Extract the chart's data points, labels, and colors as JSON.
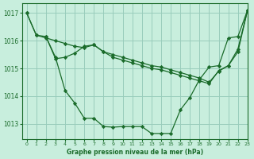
{
  "title": "Graphe pression niveau de la mer (hPa)",
  "background_color": "#c8eedd",
  "grid_color": "#99ccbb",
  "line_color": "#1a6b2a",
  "marker_color": "#1a6b2a",
  "xlim": [
    -0.5,
    23
  ],
  "ylim": [
    1012.45,
    1017.35
  ],
  "yticks": [
    1013,
    1014,
    1015,
    1016,
    1017
  ],
  "xticks": [
    0,
    1,
    2,
    3,
    4,
    5,
    6,
    7,
    8,
    9,
    10,
    11,
    12,
    13,
    14,
    15,
    16,
    17,
    18,
    19,
    20,
    21,
    22,
    23
  ],
  "series": [
    {
      "x": [
        0,
        1,
        2,
        3,
        4,
        5,
        6,
        7,
        8,
        9,
        10,
        11,
        12,
        13,
        14,
        15,
        16,
        17,
        18,
        19,
        20,
        21,
        22,
        23
      ],
      "y": [
        1017.0,
        1016.2,
        1016.15,
        1015.4,
        1014.2,
        1013.75,
        1013.2,
        1013.2,
        1012.9,
        1012.88,
        1012.9,
        1012.9,
        1012.9,
        1012.65,
        1012.65,
        1012.65,
        1013.5,
        1013.95,
        1014.6,
        1015.05,
        1015.1,
        1016.1,
        1016.15,
        1017.1
      ]
    },
    {
      "x": [
        0,
        1,
        2,
        3,
        4,
        5,
        6,
        7,
        8,
        9,
        10,
        11,
        12,
        13,
        14,
        15,
        16,
        17,
        18,
        19,
        20,
        21,
        22,
        23
      ],
      "y": [
        1017.0,
        1016.2,
        1016.1,
        1016.0,
        1015.9,
        1015.8,
        1015.75,
        1015.85,
        1015.6,
        1015.5,
        1015.4,
        1015.3,
        1015.2,
        1015.1,
        1015.05,
        1014.95,
        1014.85,
        1014.75,
        1014.65,
        1014.5,
        1014.9,
        1015.1,
        1015.6,
        1017.1
      ]
    },
    {
      "x": [
        2,
        3,
        4,
        5,
        6,
        7,
        8,
        9,
        10,
        11,
        12,
        13,
        14,
        15,
        16,
        17,
        18,
        19,
        20,
        21,
        22,
        23
      ],
      "y": [
        1016.15,
        1015.35,
        1015.4,
        1015.55,
        1015.8,
        1015.85,
        1015.6,
        1015.4,
        1015.3,
        1015.2,
        1015.1,
        1015.0,
        1014.95,
        1014.85,
        1014.75,
        1014.65,
        1014.55,
        1014.45,
        1014.92,
        1015.1,
        1015.7,
        1017.1
      ]
    }
  ]
}
